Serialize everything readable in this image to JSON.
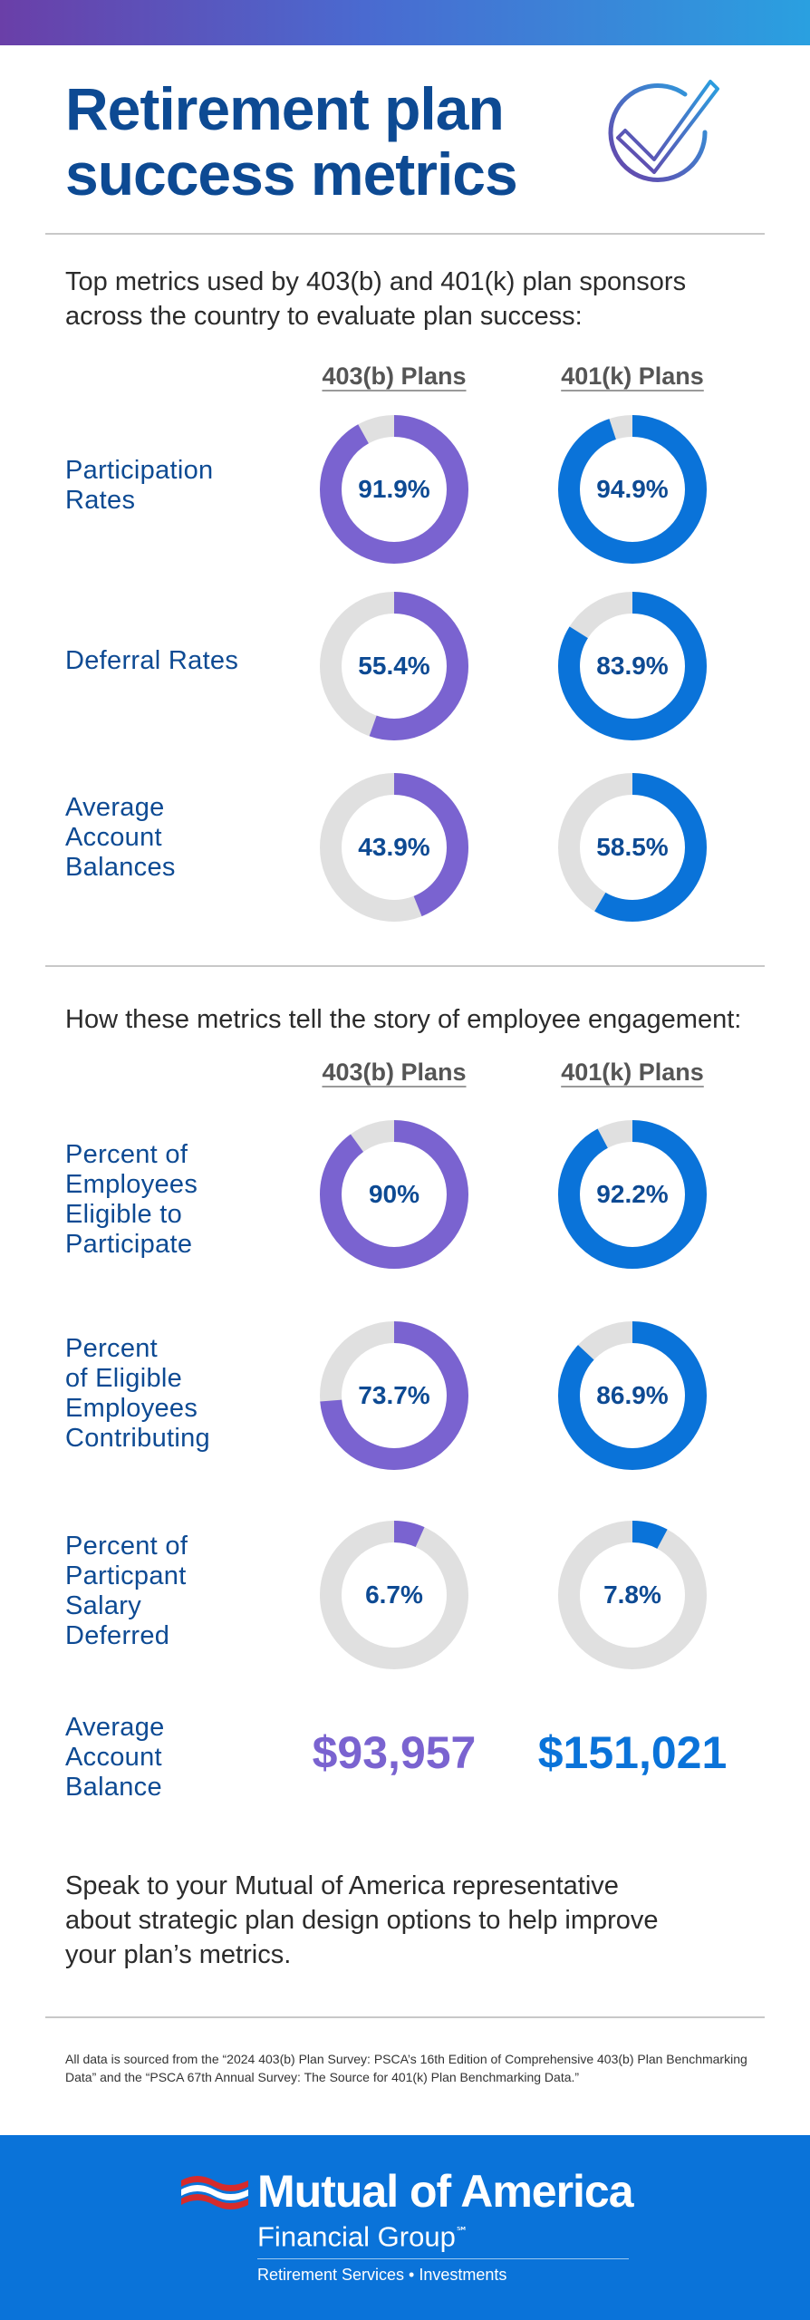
{
  "header": {
    "title_line1": "Retirement plan",
    "title_line2": "success metrics"
  },
  "colors": {
    "brand_blue": "#0d4a93",
    "plan_403b": "#7a63d0",
    "plan_401k": "#0a73d9",
    "track": "#e0e0e0",
    "footer_bg": "#0a73d9"
  },
  "section1": {
    "intro": "Top metrics used by 403(b) and 401(k) plan sponsors across the country to evaluate plan success:",
    "col_403b": "403(b) Plans",
    "col_401k": "401(k) Plans"
  },
  "section2": {
    "intro": "How these metrics tell the story of employee engagement:",
    "col_403b": "403(b) Plans",
    "col_401k": "401(k) Plans"
  },
  "chart_data": [
    {
      "type": "pie",
      "section": "section1",
      "metric_lines": [
        "Participation",
        "Rates"
      ],
      "series": [
        {
          "name": "403(b) Plans",
          "value": 91.9,
          "label": "91.9%"
        },
        {
          "name": "401(k) Plans",
          "value": 94.9,
          "label": "94.9%"
        }
      ]
    },
    {
      "type": "pie",
      "section": "section1",
      "metric_lines": [
        "Deferral Rates"
      ],
      "series": [
        {
          "name": "403(b) Plans",
          "value": 55.4,
          "label": "55.4%"
        },
        {
          "name": "401(k) Plans",
          "value": 83.9,
          "label": "83.9%"
        }
      ]
    },
    {
      "type": "pie",
      "section": "section1",
      "metric_lines": [
        "Average",
        "Account",
        "Balances"
      ],
      "series": [
        {
          "name": "403(b) Plans",
          "value": 43.9,
          "label": "43.9%"
        },
        {
          "name": "401(k) Plans",
          "value": 58.5,
          "label": "58.5%"
        }
      ]
    },
    {
      "type": "pie",
      "section": "section2",
      "metric_lines": [
        "Percent of",
        "Employees",
        "Eligible to",
        "Participate"
      ],
      "series": [
        {
          "name": "403(b) Plans",
          "value": 90,
          "label": "90%"
        },
        {
          "name": "401(k) Plans",
          "value": 92.2,
          "label": "92.2%"
        }
      ]
    },
    {
      "type": "pie",
      "section": "section2",
      "metric_lines": [
        "Percent",
        "of Eligible",
        "Employees",
        "Contributing"
      ],
      "series": [
        {
          "name": "403(b) Plans",
          "value": 73.7,
          "label": "73.7%"
        },
        {
          "name": "401(k) Plans",
          "value": 86.9,
          "label": "86.9%"
        }
      ]
    },
    {
      "type": "pie",
      "section": "section2",
      "metric_lines": [
        "Percent of",
        "Particpant",
        "Salary",
        "Deferred"
      ],
      "series": [
        {
          "name": "403(b) Plans",
          "value": 6.7,
          "label": "6.7%"
        },
        {
          "name": "401(k) Plans",
          "value": 7.8,
          "label": "7.8%"
        }
      ]
    },
    {
      "type": "table",
      "section": "section2",
      "metric_lines": [
        "Average",
        "Account",
        "Balance"
      ],
      "series": [
        {
          "name": "403(b) Plans",
          "value": 93957,
          "label": "$93,957"
        },
        {
          "name": "401(k) Plans",
          "value": 151021,
          "label": "$151,021"
        }
      ]
    }
  ],
  "cta": {
    "line1": "Speak to your Mutual of America representative",
    "line2": "about strategic plan design options to help improve",
    "line3": "your plan’s metrics."
  },
  "footnote": "All data is sourced from the “2024 403(b) Plan Survey: PSCA’s 16th Edition of Comprehensive 403(b) Plan Benchmarking Data” and the “PSCA 67th Annual Survey: The Source for 401(k) Plan Benchmarking Data.”",
  "footer": {
    "logo_name": "Mutual of America",
    "logo_sub": "Financial Group",
    "logo_tm": "℠",
    "tagline": "Retirement Services • Investments"
  }
}
